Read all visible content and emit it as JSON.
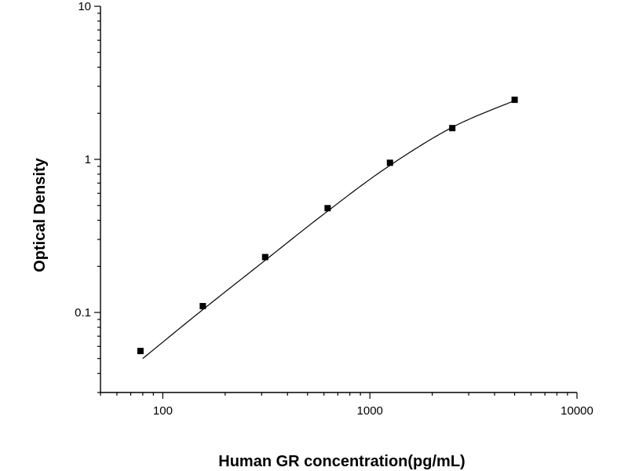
{
  "chart_data": {
    "type": "scatter",
    "title": "",
    "xlabel": "Human GR concentration(pg/mL)",
    "ylabel": "Optical Density",
    "xscale": "log",
    "yscale": "log",
    "xlim": [
      50,
      10000
    ],
    "ylim": [
      0.03,
      10
    ],
    "grid": false,
    "x_major_ticks": [
      {
        "value": 100,
        "label": "100"
      },
      {
        "value": 1000,
        "label": "1000"
      },
      {
        "value": 10000,
        "label": "10000"
      }
    ],
    "y_major_ticks": [
      {
        "value": 0.1,
        "label": "0.1"
      },
      {
        "value": 1,
        "label": "1"
      },
      {
        "value": 10,
        "label": "10"
      }
    ],
    "series": [
      {
        "type": "scatter",
        "marker": "square",
        "x": [
          78,
          156,
          312,
          625,
          1250,
          2500,
          5000
        ],
        "y": [
          0.056,
          0.11,
          0.23,
          0.48,
          0.95,
          1.6,
          2.45
        ]
      },
      {
        "type": "line",
        "x": [
          80,
          150,
          300,
          600,
          1200,
          2500,
          5000
        ],
        "y": [
          0.05,
          0.1,
          0.21,
          0.44,
          0.88,
          1.62,
          2.42
        ]
      }
    ]
  }
}
